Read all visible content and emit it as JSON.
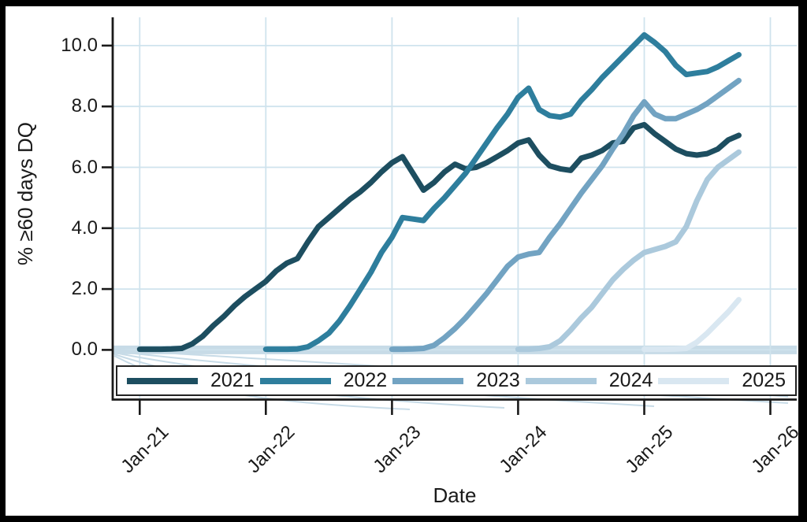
{
  "chart_data": {
    "type": "line",
    "title": "",
    "xlabel": "Date",
    "ylabel": "% ≥60 days DQ",
    "frequency": "monthly",
    "x_range": {
      "start": "Jan-21",
      "end": "Oct-25"
    },
    "x_tick_labels": [
      "Jan-21",
      "Jan-22",
      "Jan-23",
      "Jan-24",
      "Jan-25",
      "Jan-26"
    ],
    "x_tick_months": [
      0,
      12,
      24,
      36,
      48,
      60
    ],
    "y_tick_labels": [
      "0.0",
      "2.0",
      "4.0",
      "6.0",
      "8.0",
      "10.0"
    ],
    "y_ticks": [
      0,
      2,
      4,
      6,
      8,
      10
    ],
    "ylim": [
      0,
      10.9
    ],
    "grid": true,
    "legend_position": "bottom",
    "grid_color": "#cfe3ed",
    "axis_color": "#1a1a1a",
    "zero_band_color": "#c7dbe7",
    "series": [
      {
        "name": "2021",
        "color": "#1d4e60",
        "start_month": 0,
        "values": [
          0.02,
          0.02,
          0.02,
          0.03,
          0.05,
          0.2,
          0.45,
          0.8,
          1.1,
          1.45,
          1.75,
          2.0,
          2.25,
          2.6,
          2.85,
          3.0,
          3.55,
          4.05,
          4.35,
          4.65,
          4.95,
          5.2,
          5.5,
          5.85,
          6.15,
          6.35,
          5.8,
          5.25,
          5.5,
          5.85,
          6.1,
          5.95,
          6.0,
          6.15,
          6.35,
          6.55,
          6.8,
          6.9,
          6.4,
          6.05,
          5.95,
          5.9,
          6.3,
          6.4,
          6.55,
          6.8,
          6.85,
          7.3,
          7.4,
          7.1,
          6.85,
          6.6,
          6.45,
          6.4,
          6.45,
          6.6,
          6.9,
          7.05
        ]
      },
      {
        "name": "2022",
        "color": "#2e7e9d",
        "start_month": 12,
        "values": [
          0.02,
          0.02,
          0.02,
          0.03,
          0.1,
          0.3,
          0.55,
          0.95,
          1.45,
          2.0,
          2.55,
          3.2,
          3.7,
          4.35,
          4.3,
          4.25,
          4.65,
          5.0,
          5.4,
          5.8,
          6.3,
          6.8,
          7.3,
          7.75,
          8.3,
          8.6,
          7.9,
          7.7,
          7.65,
          7.75,
          8.2,
          8.55,
          8.95,
          9.3,
          9.65,
          10.0,
          10.35,
          10.1,
          9.8,
          9.35,
          9.05,
          9.1,
          9.15,
          9.3,
          9.5,
          9.7
        ]
      },
      {
        "name": "2023",
        "color": "#72a3c2",
        "start_month": 24,
        "values": [
          0.02,
          0.02,
          0.03,
          0.05,
          0.15,
          0.4,
          0.7,
          1.05,
          1.45,
          1.85,
          2.3,
          2.75,
          3.05,
          3.15,
          3.2,
          3.7,
          4.15,
          4.65,
          5.15,
          5.6,
          6.05,
          6.6,
          7.1,
          7.7,
          8.15,
          7.75,
          7.6,
          7.6,
          7.75,
          7.9,
          8.1,
          8.35,
          8.6,
          8.85
        ]
      },
      {
        "name": "2024",
        "color": "#abc9dc",
        "start_month": 36,
        "values": [
          0.02,
          0.02,
          0.05,
          0.1,
          0.3,
          0.65,
          1.05,
          1.4,
          1.85,
          2.3,
          2.65,
          2.95,
          3.2,
          3.3,
          3.4,
          3.55,
          4.05,
          4.9,
          5.6,
          6.0,
          6.25,
          6.5
        ]
      },
      {
        "name": "2025",
        "color": "#d9e7f1",
        "start_month": 48,
        "values": [
          0.02,
          0.02,
          0.02,
          0.03,
          0.05,
          0.25,
          0.55,
          0.9,
          1.25,
          1.65
        ]
      }
    ]
  }
}
